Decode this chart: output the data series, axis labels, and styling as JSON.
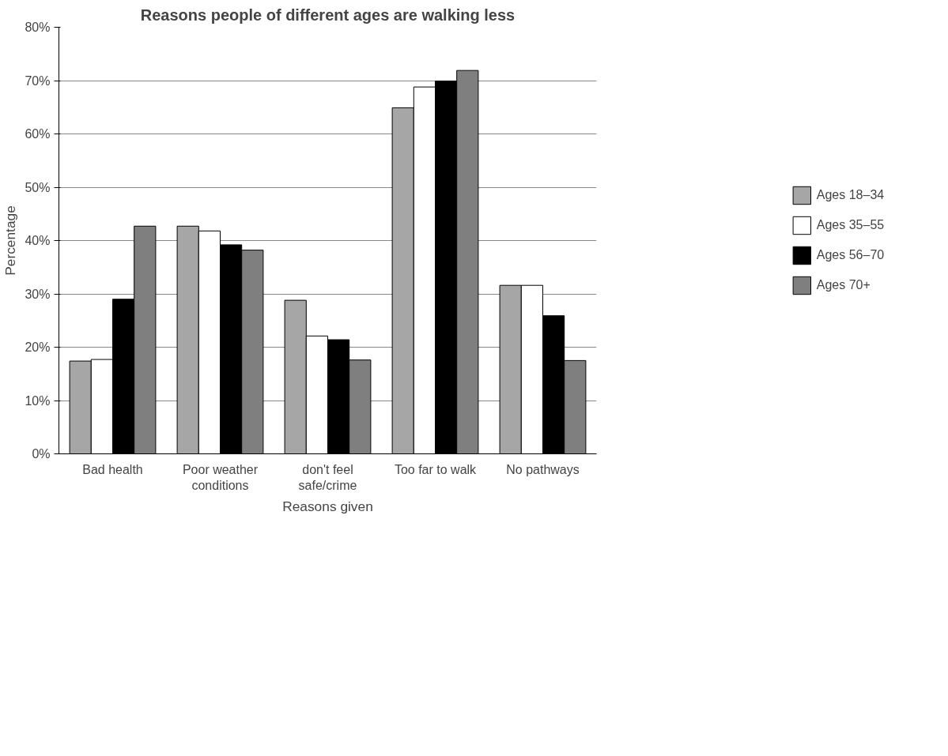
{
  "chart_data": {
    "type": "bar",
    "title": "Reasons people of different ages are walking less",
    "xlabel": "Reasons given",
    "ylabel": "Percentage",
    "categories": [
      "Bad health",
      "Poor weather conditions",
      "don't feel safe/crime",
      "Too far to walk",
      "No pathways"
    ],
    "series": [
      {
        "name": "Ages 18–34",
        "color": "#a6a6a6",
        "values": [
          17.4,
          42.7,
          28.8,
          64.9,
          31.6
        ]
      },
      {
        "name": "Ages 35–55",
        "color": "#ffffff",
        "values": [
          17.7,
          41.8,
          22.1,
          68.8,
          31.6
        ]
      },
      {
        "name": "Ages 56–70",
        "color": "#000000",
        "values": [
          29.0,
          39.2,
          21.4,
          69.9,
          25.9
        ]
      },
      {
        "name": "Ages 70+",
        "color": "#7f7f7f",
        "values": [
          42.7,
          38.2,
          17.6,
          71.9,
          17.5
        ]
      }
    ],
    "ylim": [
      0,
      80
    ],
    "yticks": [
      {
        "value": 0,
        "label": "0%"
      },
      {
        "value": 10,
        "label": "10%"
      },
      {
        "value": 20,
        "label": "20%"
      },
      {
        "value": 30,
        "label": "30%"
      },
      {
        "value": 40,
        "label": "40%"
      },
      {
        "value": 50,
        "label": "50%"
      },
      {
        "value": 60,
        "label": "60%"
      },
      {
        "value": 70,
        "label": "70%"
      },
      {
        "value": 80,
        "label": "80%"
      }
    ],
    "grid": "y",
    "legend": "right"
  }
}
